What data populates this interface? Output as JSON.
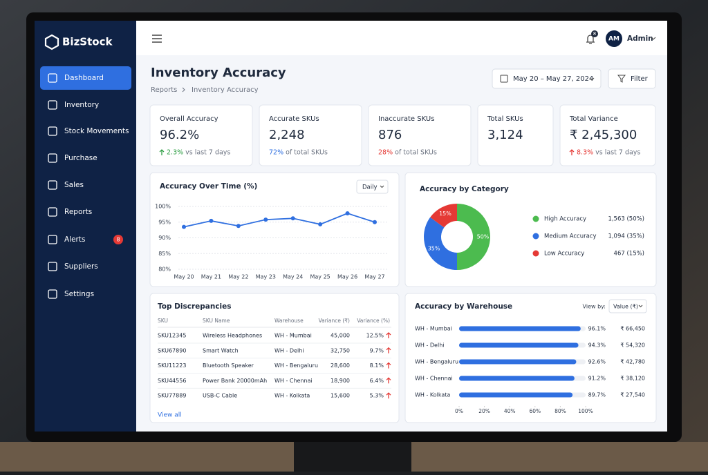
{
  "brand": "BizStock",
  "nav": [
    {
      "label": "Dashboard"
    },
    {
      "label": "Inventory"
    },
    {
      "label": "Stock Movements"
    },
    {
      "label": "Purchase"
    },
    {
      "label": "Sales"
    },
    {
      "label": "Reports"
    },
    {
      "label": "Alerts",
      "badge": 8
    },
    {
      "label": "Suppliers"
    },
    {
      "label": "Settings"
    }
  ],
  "header": {
    "notifications": 8,
    "avatar": "AM",
    "user": "Admin"
  },
  "page": {
    "title": "Inventory Accuracy",
    "breadcrumb": [
      "Reports",
      "Inventory Accuracy"
    ],
    "date_range": "May 20 – May 27, 2024",
    "filter": "Filter"
  },
  "kpis": [
    {
      "label": "Overall Accuracy",
      "value": "96.2%",
      "delta": "2.3%",
      "note": "vs last 7 days"
    },
    {
      "label": "Accurate SKUs",
      "value": "2,248",
      "highlight": "72%",
      "note": "of total SKUs"
    },
    {
      "label": "Inaccurate SKUs",
      "value": "876",
      "highlight": "28%",
      "note": "of total SKUs"
    },
    {
      "label": "Total SKUs",
      "value": "3,124"
    },
    {
      "label": "Total Variance",
      "value": "₹ 2,45,300",
      "delta": "8.3%",
      "note": "vs last 7 days"
    }
  ],
  "line_chart": {
    "type": "line",
    "title": "Accuracy Over Time (%)",
    "control": "Daily",
    "color": "#2f6fe0",
    "categories": [
      "May 20",
      "May 21",
      "May 22",
      "May 23",
      "May 24",
      "May 25",
      "May 26",
      "May 27"
    ],
    "values": [
      93.5,
      95.4,
      93.8,
      95.8,
      96.2,
      94.3,
      97.8,
      95.0
    ],
    "ylim": [
      80,
      100
    ],
    "yticks": [
      {
        "value": 80,
        "label": "80%"
      },
      {
        "value": 85,
        "label": "85%"
      },
      {
        "value": 90,
        "label": "90%"
      },
      {
        "value": 95,
        "label": "95%"
      },
      {
        "value": 100,
        "label": "100%"
      }
    ],
    "grid": true
  },
  "donut": {
    "type": "pie",
    "title": "Accuracy by Category",
    "categories": [
      "High Accuracy",
      "Medium Accuracy",
      "Low Accuracy"
    ],
    "values": [
      50,
      35,
      15
    ],
    "value_labels": [
      "50%",
      "35%",
      "15%"
    ],
    "counts": [
      "1,563 (50%)",
      "1,094 (35%)",
      "467 (15%)"
    ],
    "colors": [
      "#4cbb4f",
      "#2f6fe0",
      "#e53935"
    ]
  },
  "discrepancies": {
    "title": "Top Discrepancies",
    "columns": [
      "SKU",
      "SKU Name",
      "Warehouse",
      "Variance (₹)",
      "Variance (%)"
    ],
    "rows": [
      [
        "SKU12345",
        "Wireless Headphones",
        "WH - Mumbai",
        "45,000",
        "12.5%"
      ],
      [
        "SKU67890",
        "Smart Watch",
        "WH - Delhi",
        "32,750",
        "9.7%"
      ],
      [
        "SKU11223",
        "Bluetooth Speaker",
        "WH - Bengaluru",
        "28,600",
        "8.1%"
      ],
      [
        "SKU44556",
        "Power Bank 20000mAh",
        "WH - Chennai",
        "18,900",
        "6.4%"
      ],
      [
        "SKU77889",
        "USB-C Cable",
        "WH - Kolkata",
        "15,600",
        "5.3%"
      ]
    ],
    "link": "View all"
  },
  "warehouse": {
    "type": "bar",
    "title": "Accuracy by Warehouse",
    "control_label": "View by:",
    "control": "Value (₹)",
    "color": "#2f6fe0",
    "categories": [
      "WH - Mumbai",
      "WH - Delhi",
      "WH - Bengaluru",
      "WH - Chennai",
      "WH - Kolkata"
    ],
    "values": [
      96.1,
      94.3,
      92.6,
      91.2,
      89.7
    ],
    "value_labels": [
      "96.1%",
      "94.3%",
      "92.6%",
      "91.2%",
      "89.7%"
    ],
    "amounts": [
      "₹ 66,450",
      "₹ 54,320",
      "₹ 42,780",
      "₹ 38,120",
      "₹ 27,540"
    ],
    "xlim": [
      0,
      100
    ],
    "xticks": [
      {
        "value": 0,
        "label": "0%"
      },
      {
        "value": 20,
        "label": "20%"
      },
      {
        "value": 40,
        "label": "40%"
      },
      {
        "value": 60,
        "label": "60%"
      },
      {
        "value": 80,
        "label": "80%"
      },
      {
        "value": 100,
        "label": "100%"
      }
    ]
  }
}
